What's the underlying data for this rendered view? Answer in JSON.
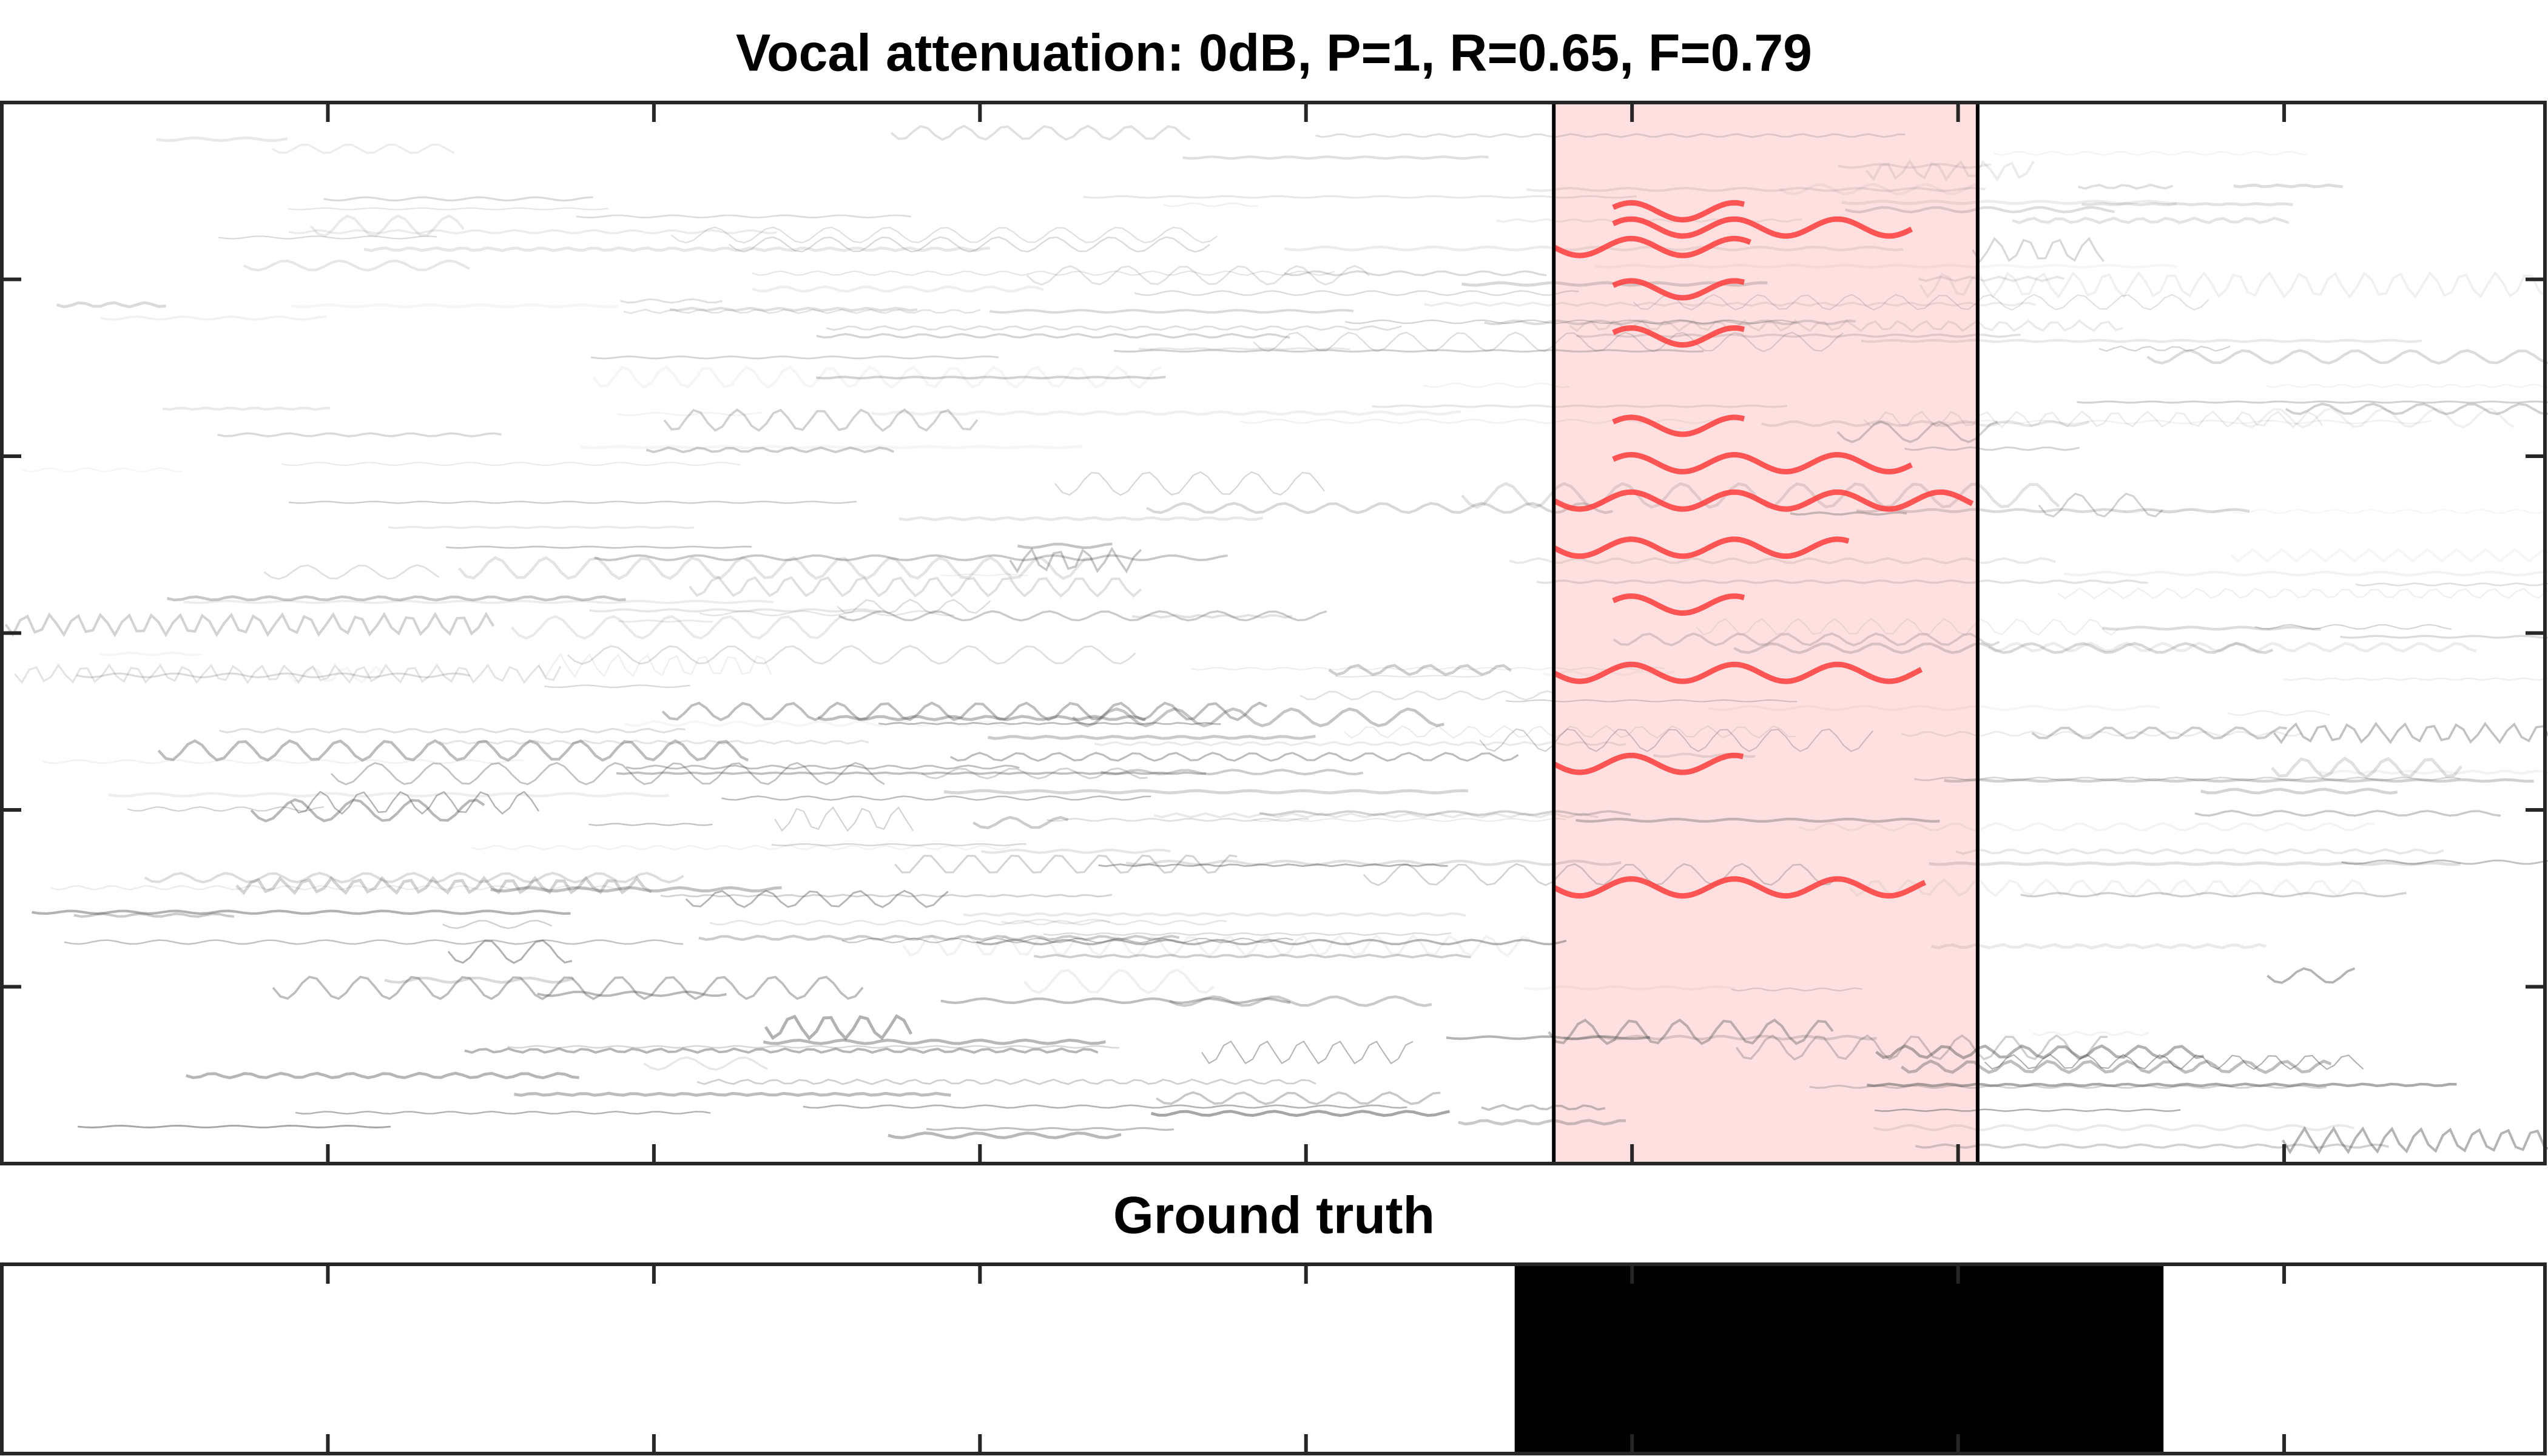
{
  "chart_data": [
    {
      "type": "spectrogram",
      "title": "Vocal attenuation: 0dB, P=1, R=0.65, F=0.79",
      "xlim": [
        0,
        7.8
      ],
      "xticks": [
        1,
        2,
        3,
        4,
        5,
        6,
        7
      ],
      "ylim": [
        0,
        6
      ],
      "yticks": [
        1,
        2,
        3,
        4,
        5
      ],
      "detections": [
        [
          4.76,
          6.06
        ]
      ],
      "highlight_color": "#ffe0e0",
      "detection_color": "#ff3b3b"
    },
    {
      "type": "segments",
      "title": "Ground truth",
      "xlim": [
        0,
        7.8
      ],
      "xticks": [
        1,
        2,
        3,
        4,
        5,
        6,
        7
      ],
      "segments": [
        [
          4.64,
          6.63
        ]
      ],
      "color": "#000000"
    }
  ]
}
